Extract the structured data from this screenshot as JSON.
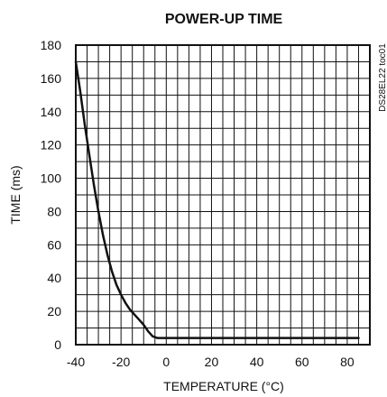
{
  "chart_data": {
    "type": "line",
    "title": "POWER-UP TIME",
    "xlabel": "TEMPERATURE (°C)",
    "ylabel": "TIME (ms)",
    "side_code": "DS28EL22 toc01",
    "xlim": [
      -40,
      90
    ],
    "ylim": [
      0,
      180
    ],
    "x_ticks": [
      -40,
      -20,
      0,
      20,
      40,
      60,
      80
    ],
    "y_ticks": [
      0,
      20,
      40,
      60,
      80,
      100,
      120,
      140,
      160,
      180
    ],
    "x_grid_step": 5,
    "y_grid_step": 10,
    "grid": true,
    "legend": "none",
    "series": [
      {
        "x": [
          -40,
          -38,
          -36,
          -34,
          -32,
          -30,
          -28,
          -26,
          -24,
          -22,
          -20,
          -18,
          -16,
          -14,
          -12,
          -10,
          -8,
          -6,
          -4,
          -2,
          0,
          10,
          20,
          40,
          60,
          80,
          85
        ],
        "y": [
          170,
          152,
          132,
          114,
          96,
          80,
          66,
          54,
          44,
          36,
          30,
          25,
          21,
          18,
          15,
          12,
          8,
          5,
          4,
          4,
          4,
          4,
          4,
          4,
          4,
          4,
          4
        ]
      }
    ]
  }
}
